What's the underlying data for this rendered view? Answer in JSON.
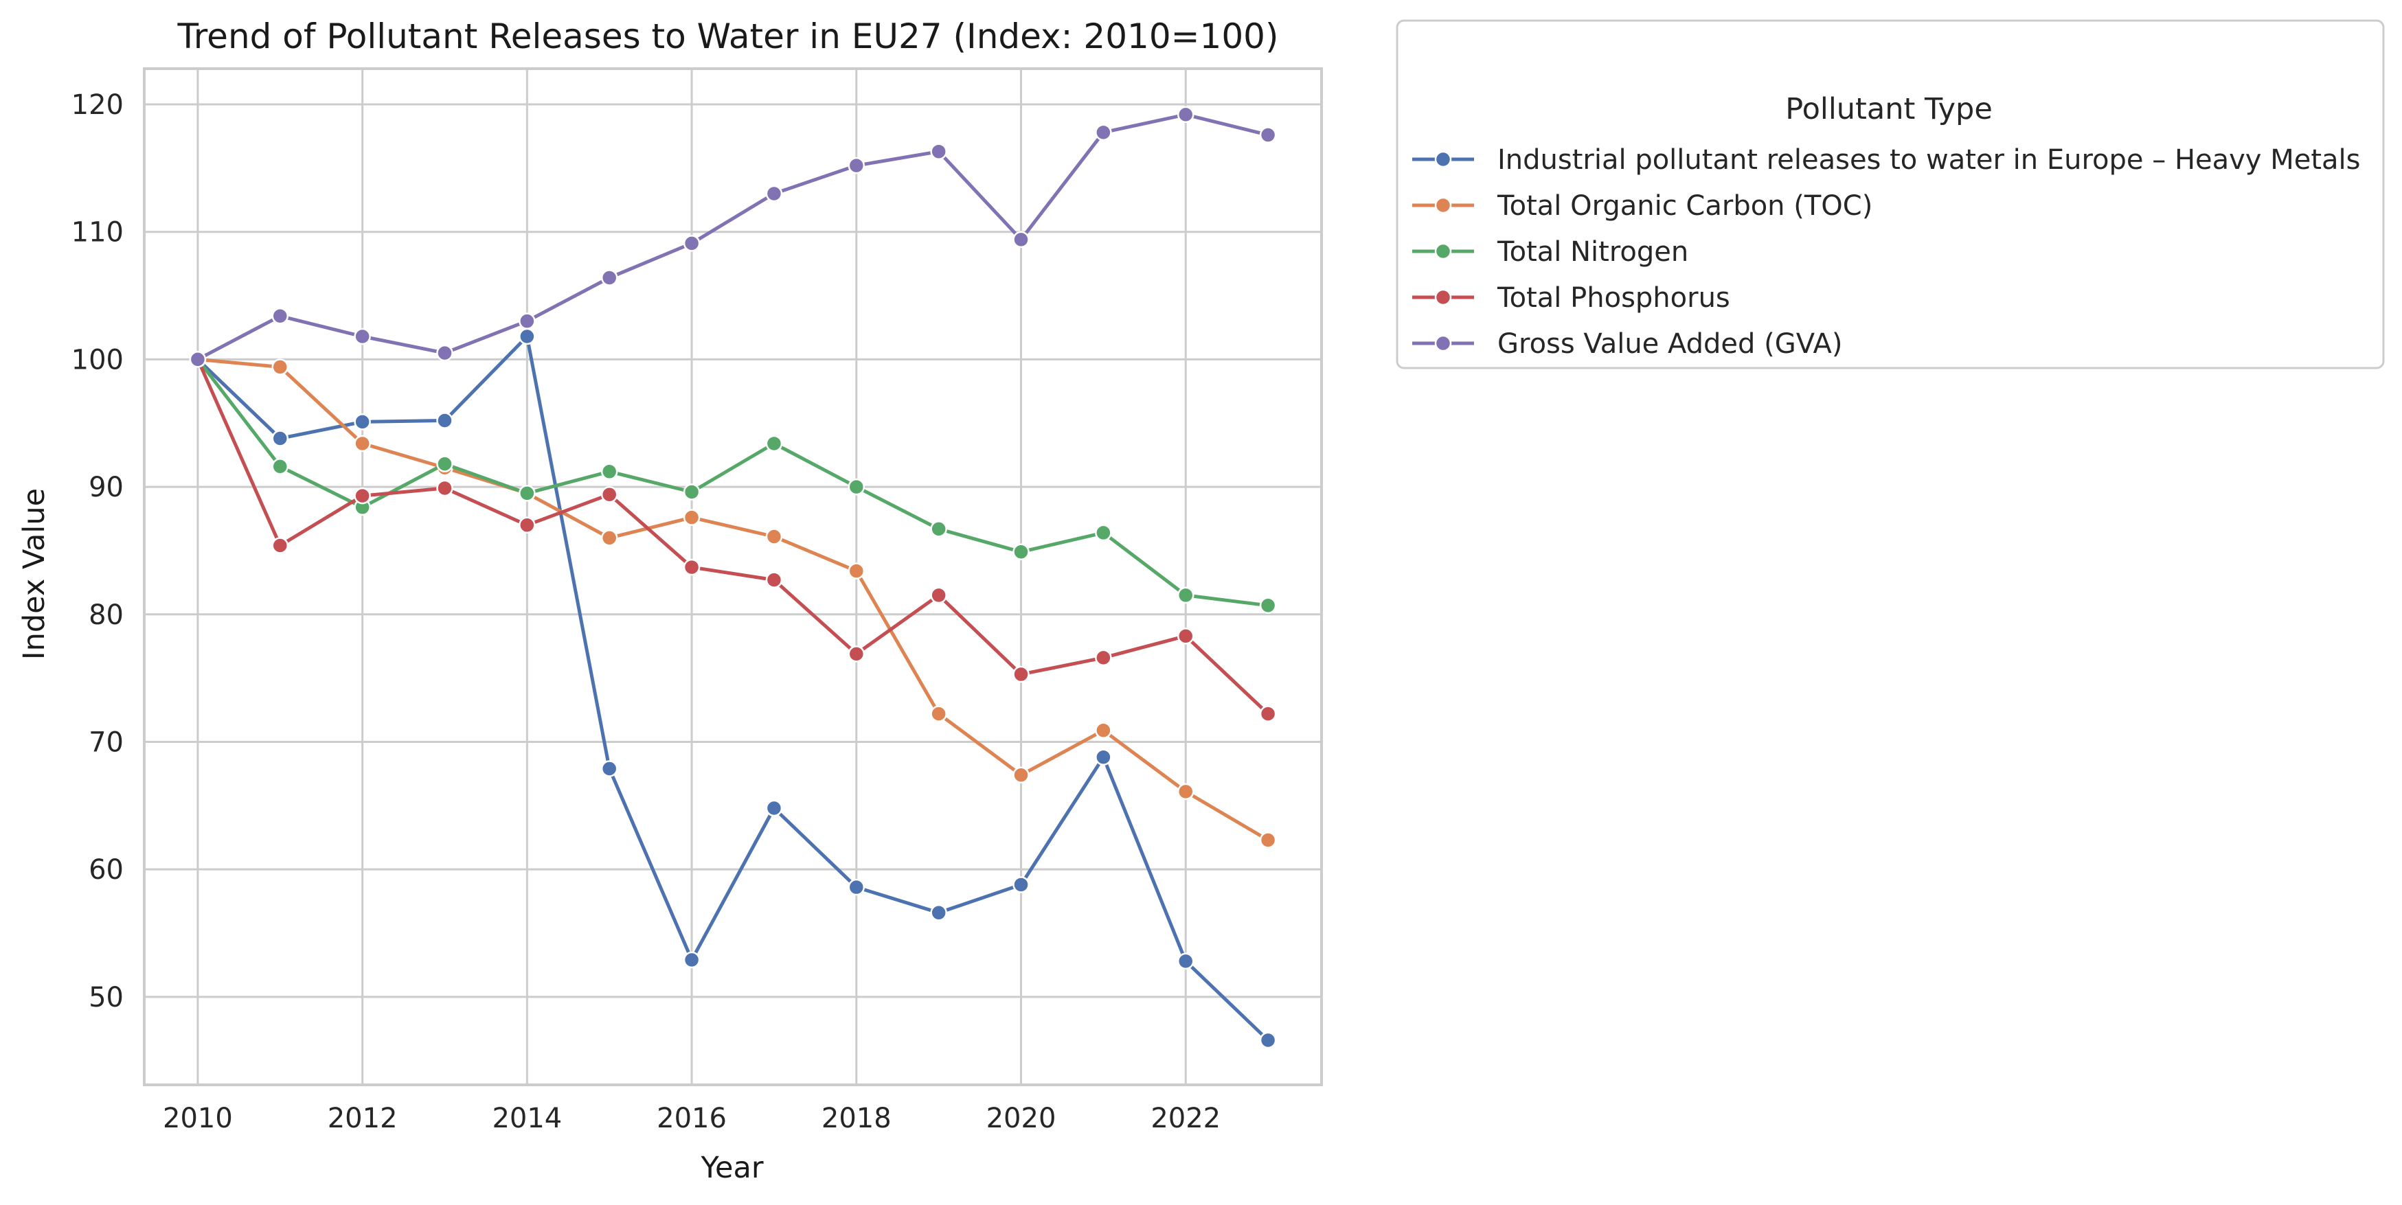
{
  "chart_data": {
    "type": "line",
    "title": "Trend of Pollutant Releases to Water in EU27 (Index: 2010=100)",
    "xlabel": "Year",
    "ylabel": "Index Value",
    "x": [
      2010,
      2011,
      2012,
      2013,
      2014,
      2015,
      2016,
      2017,
      2018,
      2019,
      2020,
      2021,
      2022,
      2023
    ],
    "xlim": [
      2009.35,
      2023.65
    ],
    "ylim": [
      43.1,
      122.8
    ],
    "xticks": [
      2010,
      2012,
      2014,
      2016,
      2018,
      2020,
      2022
    ],
    "yticks": [
      50,
      60,
      70,
      80,
      90,
      100,
      110,
      120
    ],
    "grid": true,
    "markers": true,
    "legend": {
      "title": "Pollutant Type",
      "placement": "outside-top-right"
    },
    "series": [
      {
        "name": "Industrial pollutant releases to water in Europe – Heavy Metals",
        "color": "#4c72b0",
        "values": [
          100,
          93.8,
          95.1,
          95.2,
          101.8,
          67.9,
          52.9,
          64.8,
          58.6,
          56.6,
          58.8,
          68.8,
          52.8,
          46.6
        ]
      },
      {
        "name": "Total Organic Carbon (TOC)",
        "color": "#dd8452",
        "values": [
          100,
          99.4,
          93.4,
          91.5,
          89.5,
          86.0,
          87.6,
          86.1,
          83.4,
          72.2,
          67.4,
          70.9,
          66.1,
          62.3
        ]
      },
      {
        "name": "Total Nitrogen",
        "color": "#55a868",
        "values": [
          100,
          91.6,
          88.4,
          91.8,
          89.5,
          91.2,
          89.6,
          93.4,
          90.0,
          86.7,
          84.9,
          86.4,
          81.5,
          80.7
        ]
      },
      {
        "name": "Total Phosphorus",
        "color": "#c44e52",
        "values": [
          100,
          85.4,
          89.3,
          89.9,
          87.0,
          89.4,
          83.7,
          82.7,
          76.9,
          81.5,
          75.3,
          76.6,
          78.3,
          72.2
        ]
      },
      {
        "name": "Gross Value Added (GVA)",
        "color": "#8172b3",
        "values": [
          100,
          103.4,
          101.8,
          100.5,
          103.0,
          106.4,
          109.1,
          113.0,
          115.2,
          116.3,
          109.4,
          117.8,
          119.2,
          117.6
        ]
      }
    ]
  }
}
